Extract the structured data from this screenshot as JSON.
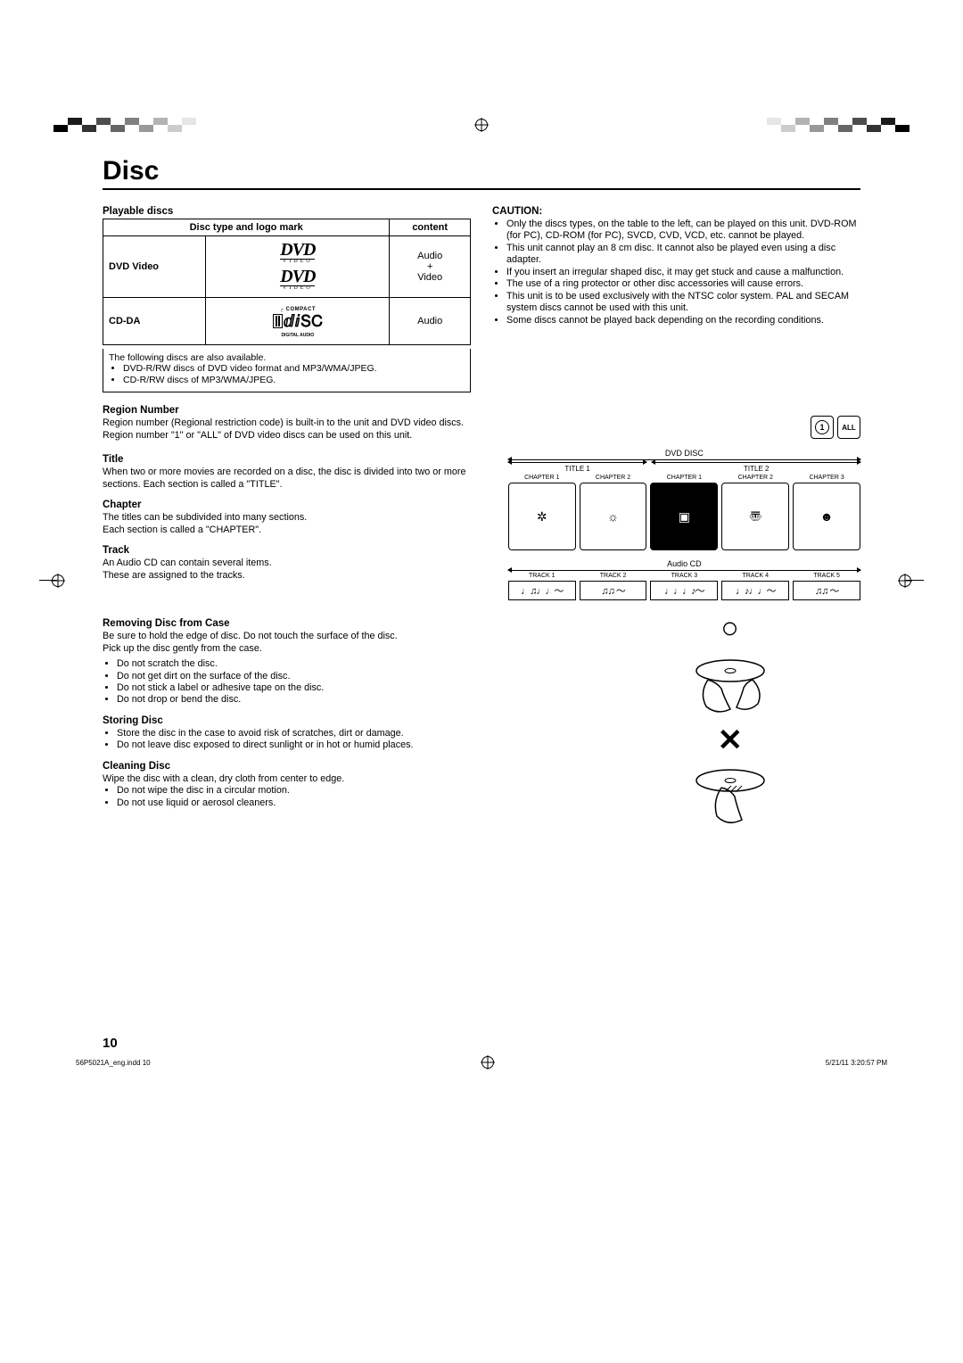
{
  "page_title": "Disc",
  "page_number": "10",
  "footer_left": "56P5021A_eng.indd   10",
  "footer_right": "5/21/11   3:20:57 PM",
  "playable_discs": {
    "heading": "Playable discs",
    "col1": "Disc type and logo mark",
    "col2": "content",
    "row1_type": "DVD Video",
    "row1_content": "Audio\n+\nVideo",
    "row2_type": "CD-DA",
    "row2_content": "Audio",
    "note_intro": "The following discs are also available.",
    "note1": "DVD-R/RW discs of DVD video format and MP3/WMA/JPEG.",
    "note2": "CD-R/RW discs of MP3/WMA/JPEG."
  },
  "caution": {
    "heading": "CAUTION:",
    "items": [
      "Only the discs types, on the table to the left, can be played on this unit. DVD-ROM (for PC), CD-ROM (for PC), SVCD, CVD, VCD, etc. cannot be played.",
      "This unit cannot play an 8 cm disc. It cannot also be played even using a disc adapter.",
      "If you insert an irregular shaped disc, it may get stuck and cause a malfunction.",
      "The use of a ring protector or other disc accessories will cause errors.",
      "This unit is to be used exclusively with the NTSC color system. PAL and SECAM system discs cannot be used with this unit.",
      "Some discs cannot be played back depending on the recording conditions."
    ]
  },
  "region": {
    "heading": "Region Number",
    "text": "Region number (Regional restriction code) is built-in to the unit and DVD video discs.\nRegion number \"1\" or \"ALL\" of DVD video discs can be used on this unit.",
    "icon1": "1",
    "icon2": "ALL"
  },
  "title": {
    "heading": "Title",
    "text": "When two or more movies are recorded on a disc, the disc is divided into two or more sections. Each section is called a \"TITLE\"."
  },
  "chapter": {
    "heading": "Chapter",
    "text": "The titles can be subdivided into many sections.\nEach section is called a \"CHAPTER\"."
  },
  "track": {
    "heading": "Track",
    "text": "An Audio CD can contain several items.\nThese are assigned to the tracks."
  },
  "diagram": {
    "dvd_label": "DVD DISC",
    "title1": "TITLE 1",
    "title2": "TITLE 2",
    "chapters": [
      "CHAPTER 1",
      "CHAPTER 2",
      "CHAPTER 1",
      "CHAPTER 2",
      "CHAPTER 3"
    ],
    "audio_label": "Audio CD",
    "tracks": [
      "TRACK 1",
      "TRACK 2",
      "TRACK 3",
      "TRACK 4",
      "TRACK 5"
    ]
  },
  "removing": {
    "heading": "Removing Disc from Case",
    "text": "Be sure to hold the edge of disc. Do not touch the surface of the disc.\nPick up the disc gently from the case.",
    "items": [
      "Do not scratch the disc.",
      "Do not get dirt on the surface of the disc.",
      "Do not stick a label or adhesive tape on the disc.",
      "Do not drop or bend the disc."
    ]
  },
  "storing": {
    "heading": "Storing Disc",
    "items": [
      "Store the disc in the case to avoid risk of scratches, dirt or damage.",
      "Do not leave disc exposed to direct sunlight or in hot or humid places."
    ]
  },
  "cleaning": {
    "heading": "Cleaning Disc",
    "text": "Wipe the disc with a clean, dry cloth from center to edge.",
    "items": [
      "Do not wipe the disc in a circular motion.",
      "Do not use liquid or aerosol cleaners."
    ]
  },
  "dvd_logo_sub": "VIDEO",
  "checker_colors": [
    "#000000",
    "#1a1a1a",
    "#333333",
    "#4d4d4d",
    "#666666",
    "#808080",
    "#999999",
    "#b3b3b3",
    "#cccccc",
    "#e6e6e6",
    "#ffffff"
  ]
}
